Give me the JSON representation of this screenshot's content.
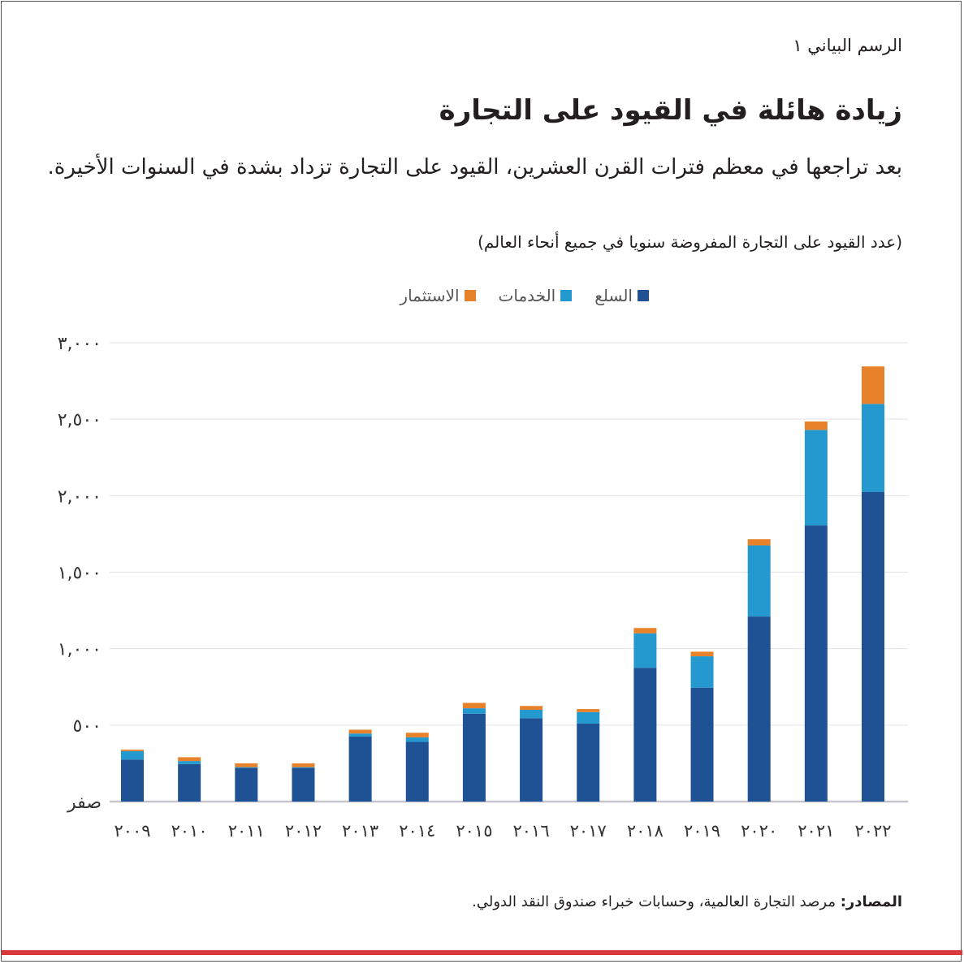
{
  "figure_label": "الرسم البياني ١",
  "title": "زيادة هائلة في القيود على التجارة",
  "subtitle": "بعد تراجعها في معظم فترات القرن العشرين، القيود على التجارة تزداد بشدة في السنوات الأخيرة.",
  "note": "(عدد القيود على التجارة المفروضة سنويا في جميع أنحاء العالم)",
  "source_label": "المصادر:",
  "source_text": " مرصد التجارة العالمية، وحسابات خبراء صندوق النقد الدولي.",
  "colors": {
    "goods": "#1f5295",
    "services": "#2499d0",
    "investment": "#e8822a",
    "grid": "#e4e0e8",
    "accent": "#d9393b"
  },
  "chart_data": {
    "type": "bar",
    "stacked": true,
    "categories": [
      "2009",
      "2010",
      "2011",
      "2012",
      "2013",
      "2014",
      "2015",
      "2016",
      "2017",
      "2018",
      "2019",
      "2020",
      "2021",
      "2022"
    ],
    "x_tick_labels": [
      "٢٠٠٩",
      "٢٠١٠",
      "٢٠١١",
      "٢٠١٢",
      "٢٠١٣",
      "٢٠١٤",
      "٢٠١٥",
      "٢٠١٦",
      "٢٠١٧",
      "٢٠١٨",
      "٢٠١٩",
      "٢٠٢٠",
      "٢٠٢١",
      "٢٠٢٢"
    ],
    "series": [
      {
        "name": "السلع",
        "color": "#1f5295",
        "values": [
          275,
          245,
          220,
          220,
          425,
          390,
          575,
          545,
          510,
          875,
          745,
          1210,
          1805,
          2025
        ]
      },
      {
        "name": "الخدمات",
        "color": "#2499d0",
        "values": [
          55,
          20,
          5,
          5,
          20,
          30,
          35,
          55,
          75,
          225,
          205,
          465,
          625,
          575
        ]
      },
      {
        "name": "الاستثمار",
        "color": "#e8822a",
        "values": [
          10,
          25,
          25,
          25,
          25,
          30,
          35,
          25,
          20,
          35,
          30,
          40,
          55,
          245
        ]
      }
    ],
    "ylim": [
      0,
      3000
    ],
    "y_ticks": [
      0,
      500,
      1000,
      1500,
      2000,
      2500,
      3000
    ],
    "y_tick_labels": [
      "صفر",
      "٥٠٠",
      "١,٠٠٠",
      "١,٥٠٠",
      "٢,٠٠٠",
      "٢,٥٠٠",
      "٣,٠٠٠"
    ],
    "grid": true,
    "legend_position": "top"
  }
}
